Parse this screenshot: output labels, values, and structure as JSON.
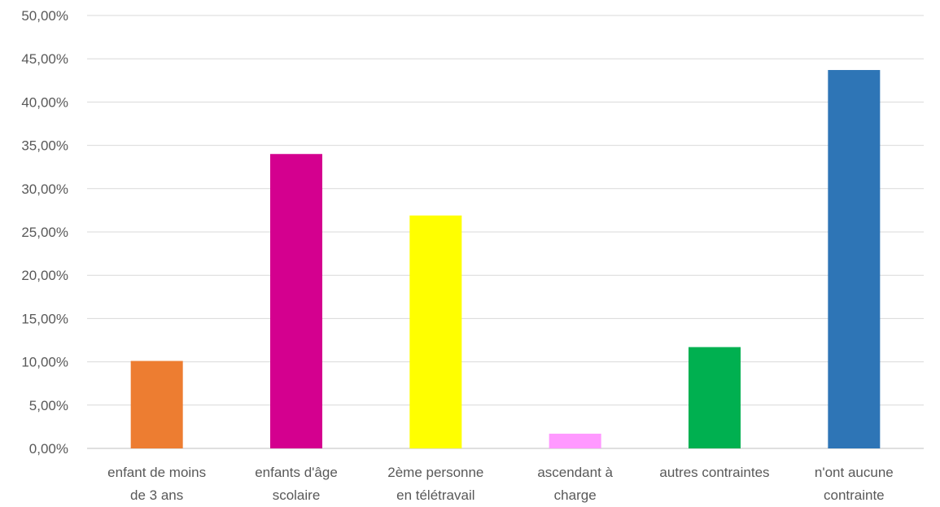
{
  "chart_data": {
    "type": "bar",
    "title": "",
    "xlabel": "",
    "ylabel": "",
    "categories": [
      [
        "enfant de moins",
        "de 3 ans"
      ],
      [
        "enfants d'âge",
        "scolaire"
      ],
      [
        "2ème personne",
        "en télétravail"
      ],
      [
        "ascendant à",
        "charge"
      ],
      [
        "autres contraintes"
      ],
      [
        "n'ont aucune",
        "contrainte"
      ]
    ],
    "values": [
      10.1,
      34.0,
      26.9,
      1.7,
      11.7,
      43.7
    ],
    "colors": [
      "#ED7D31",
      "#D4008F",
      "#FFFF00",
      "#FF99FF",
      "#00B050",
      "#2E75B6"
    ],
    "ylim": [
      0,
      50
    ],
    "ytick_labels": [
      "0,00%",
      "5,00%",
      "10,00%",
      "15,00%",
      "20,00%",
      "25,00%",
      "30,00%",
      "35,00%",
      "40,00%",
      "45,00%",
      "50,00%"
    ],
    "grid": true,
    "legend": "none"
  }
}
